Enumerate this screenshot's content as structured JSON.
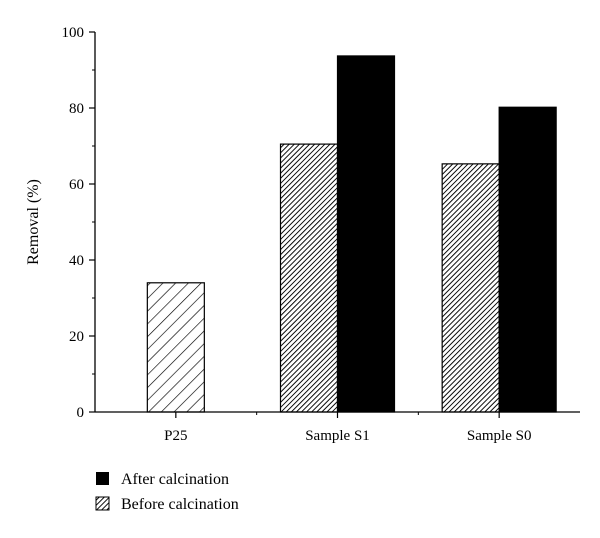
{
  "chart_data": {
    "type": "bar",
    "title": "",
    "xlabel": "",
    "ylabel": "Removal (%)",
    "ylim": [
      0,
      100
    ],
    "yticks": [
      0,
      20,
      40,
      60,
      80,
      100
    ],
    "grid": false,
    "legend_position": "bottom-left",
    "categories": [
      "P25",
      "Sample S1",
      "Sample S0"
    ],
    "series": [
      {
        "name": "Before calcination",
        "values": [
          34,
          70.5,
          65.3
        ],
        "patterns": [
          "sparse-hatch",
          "dense-hatch",
          "dense-hatch"
        ]
      },
      {
        "name": "After calcination",
        "values": [
          null,
          93.7,
          80.2
        ],
        "color": "#000000"
      }
    ],
    "legend": [
      "After calcination",
      "Before calcination"
    ]
  }
}
